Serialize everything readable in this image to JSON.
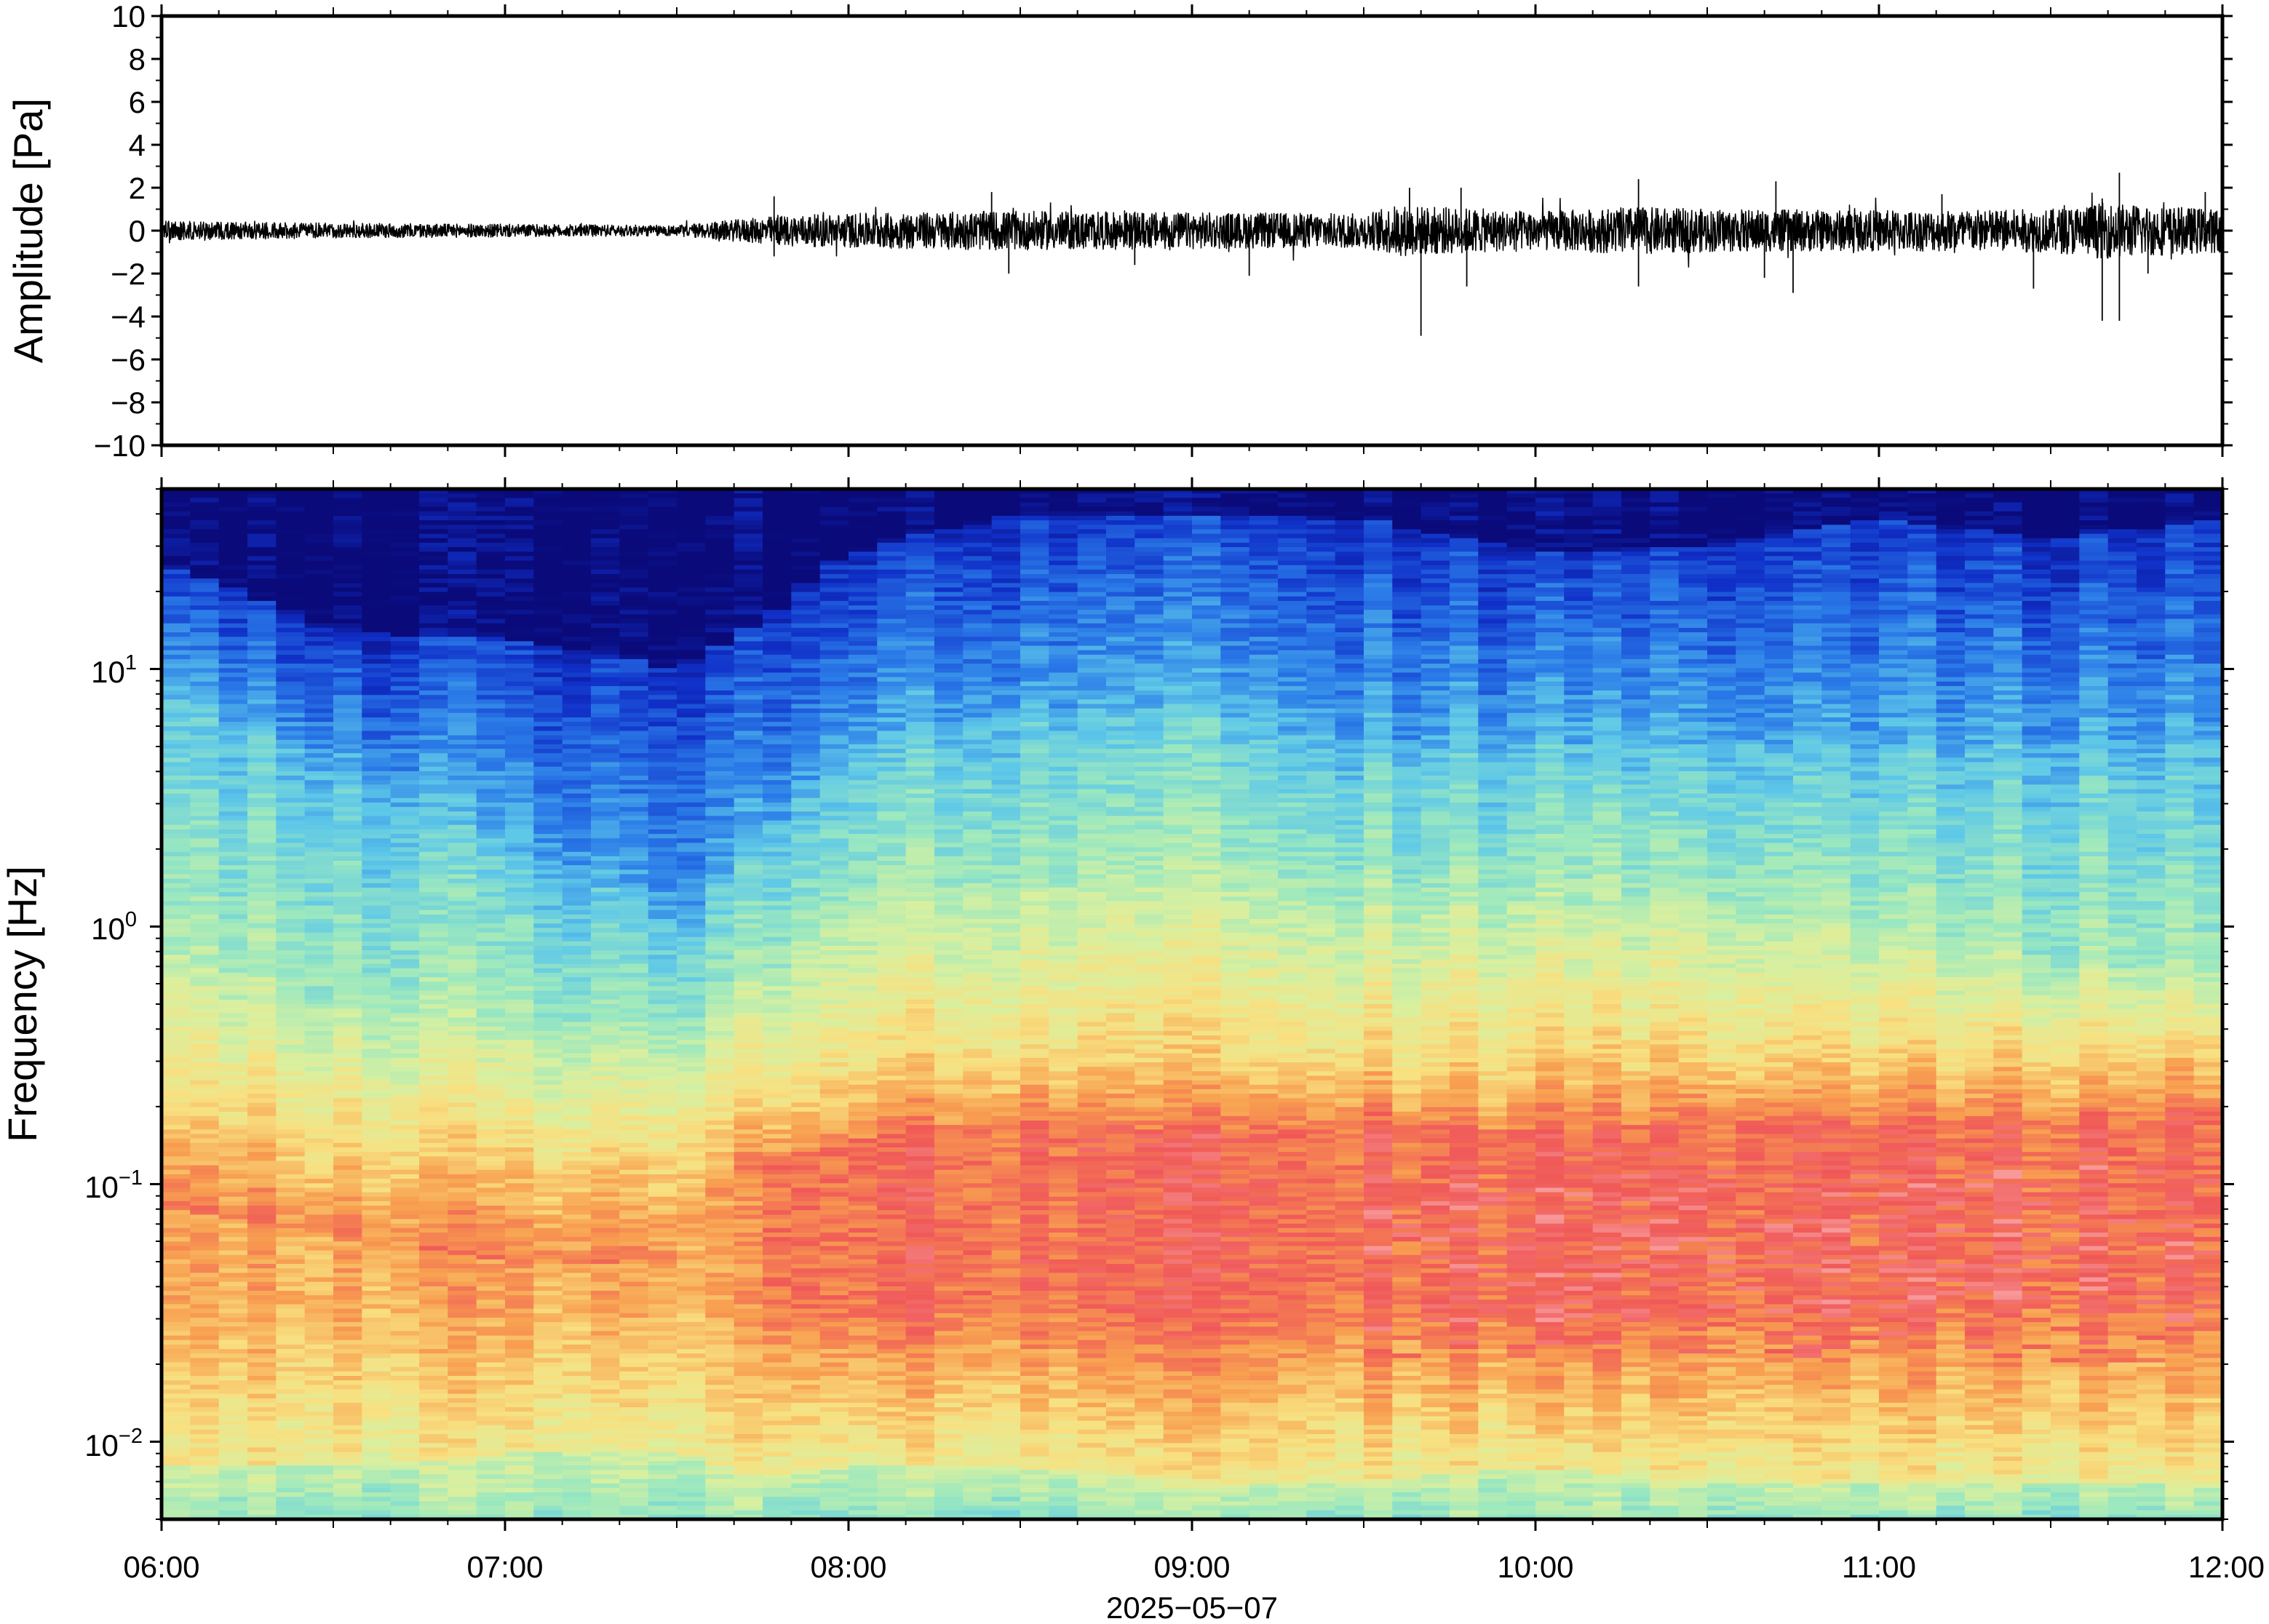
{
  "chart_data": [
    {
      "type": "line",
      "ylabel": "Amplitude [Pa]",
      "ylim": [
        -10,
        10
      ],
      "yticks": [
        10,
        8,
        6,
        4,
        2,
        0,
        -2,
        -4,
        -6,
        -8,
        -10
      ],
      "ytick_labels": [
        "10",
        "8",
        "6",
        "4",
        "2",
        "0",
        "−2",
        "−4",
        "−6",
        "−8",
        "−10"
      ],
      "xlim": [
        "06:00",
        "12:00"
      ],
      "series": [
        {
          "color": "#000000",
          "x_hours": [
            6.0,
            6.5,
            7.0,
            7.5,
            7.8,
            8.0,
            8.4,
            8.5,
            9.0,
            9.5,
            9.6,
            10.0,
            10.3,
            10.5,
            11.0,
            11.5,
            11.65,
            12.0
          ],
          "noise_envelope_pa": [
            0.45,
            0.35,
            0.3,
            0.25,
            0.7,
            0.8,
            0.9,
            0.9,
            0.85,
            0.8,
            1.2,
            0.9,
            1.1,
            1.0,
            0.95,
            1.0,
            1.3,
            1.0
          ]
        }
      ],
      "spikes": [
        {
          "x": "07:47",
          "y": 1.6
        },
        {
          "x": "07:47",
          "y": -1.2
        },
        {
          "x": "08:25",
          "y": 1.8
        },
        {
          "x": "08:28",
          "y": -2.0
        },
        {
          "x": "08:50",
          "y": -1.6
        },
        {
          "x": "09:10",
          "y": -2.1
        },
        {
          "x": "09:38",
          "y": 2.0
        },
        {
          "x": "09:40",
          "y": -4.9
        },
        {
          "x": "09:47",
          "y": 2.0
        },
        {
          "x": "09:48",
          "y": -2.6
        },
        {
          "x": "10:18",
          "y": 2.4
        },
        {
          "x": "10:18",
          "y": -2.6
        },
        {
          "x": "10:40",
          "y": -2.2
        },
        {
          "x": "10:42",
          "y": 2.3
        },
        {
          "x": "10:45",
          "y": -2.9
        },
        {
          "x": "11:11",
          "y": 1.7
        },
        {
          "x": "11:27",
          "y": -2.7
        },
        {
          "x": "11:39",
          "y": 1.5
        },
        {
          "x": "11:39",
          "y": -4.2
        },
        {
          "x": "11:42",
          "y": 2.7
        },
        {
          "x": "11:42",
          "y": -4.2
        },
        {
          "x": "11:47",
          "y": -2.0
        },
        {
          "x": "11:57",
          "y": 1.8
        }
      ]
    },
    {
      "type": "heatmap",
      "ylabel": "Frequency [Hz]",
      "yscale": "log",
      "ylim": [
        0.005,
        50
      ],
      "yticks": [
        {
          "base": "10",
          "exp": "1"
        },
        {
          "base": "10",
          "exp": "0"
        },
        {
          "base": "10",
          "exp": "−1"
        },
        {
          "base": "10",
          "exp": "−2"
        }
      ],
      "xlabel": "2025−05−07",
      "xtick_labels": [
        "06:00",
        "07:00",
        "08:00",
        "09:00",
        "10:00",
        "11:00",
        "12:00"
      ],
      "colormap": [
        "#0a0a7a",
        "#1030c8",
        "#2a7ae8",
        "#5ec8e8",
        "#9ae8c0",
        "#d8f0a0",
        "#f8e080",
        "#f8a050",
        "#f05858",
        "#f89898"
      ],
      "band_edges_hz": {
        "x_hours": [
          6.0,
          6.5,
          7.0,
          7.5,
          7.75,
          8.0,
          8.5,
          9.0,
          9.5,
          10.0,
          10.5,
          11.0,
          11.5,
          12.0
        ],
        "navy_floor_hz": [
          25,
          14,
          13,
          10,
          15,
          28,
          40,
          40,
          38,
          28,
          30,
          38,
          32,
          38
        ],
        "blue_floor_hz": [
          8,
          4,
          2,
          1,
          2,
          5,
          7,
          7,
          5,
          5,
          5,
          5,
          5,
          5
        ],
        "cyan_floor_hz": [
          0.8,
          0.5,
          0.4,
          0.35,
          0.6,
          1.2,
          1.5,
          1.5,
          1.2,
          1.2,
          1.2,
          1.0,
          0.7,
          0.7
        ],
        "yellow_floor_hz": [
          0.2,
          0.15,
          0.13,
          0.13,
          0.2,
          0.28,
          0.32,
          0.3,
          0.3,
          0.3,
          0.32,
          0.32,
          0.33,
          0.35
        ],
        "red_upper_hz": [
          0.08,
          0.06,
          0.05,
          0.05,
          0.12,
          0.15,
          0.18,
          0.16,
          0.18,
          0.16,
          0.18,
          0.18,
          0.18,
          0.2
        ],
        "low_green_hz": [
          0.008,
          0.008,
          0.009,
          0.009,
          0.007,
          0.008,
          0.008,
          0.007,
          0.007,
          0.008,
          0.007,
          0.007,
          0.007,
          0.007
        ]
      }
    }
  ]
}
